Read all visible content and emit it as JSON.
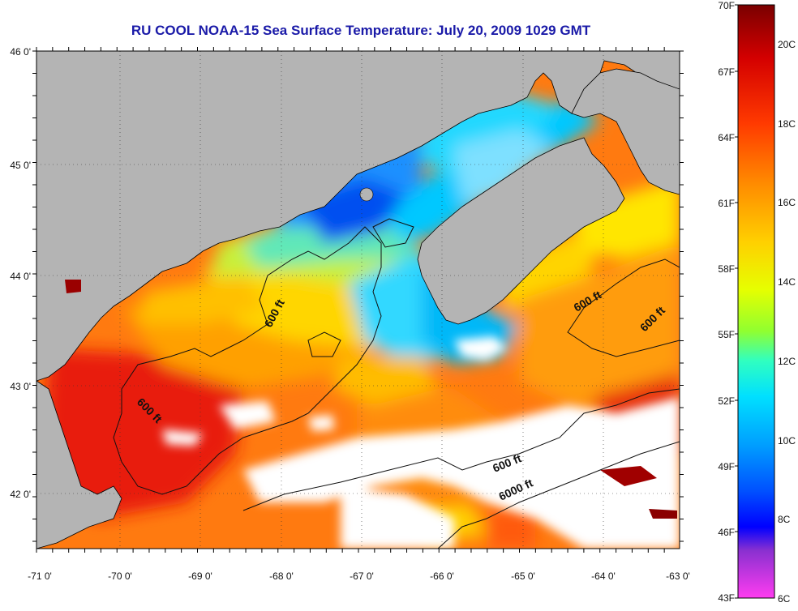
{
  "title": "RU COOL  NOAA-15  Sea Surface Temperature:  July 20, 2009 1029 GMT",
  "map": {
    "lon_ticks": [
      "-71 0'",
      "-70 0'",
      "-69 0'",
      "-68 0'",
      "-67 0'",
      "-66 0'",
      "-65 0'",
      "-64 0'",
      "-63 0'"
    ],
    "lat_ticks": [
      "46 0'",
      "45 0'",
      "44 0'",
      "43 0'",
      "42 0'"
    ],
    "contour_labels": [
      "600 ft",
      "600 ft",
      "600 ft",
      "600 ft",
      "600 ft",
      "6000 ft"
    ],
    "colors": {
      "land": "#b4b4b4",
      "cloud": "#ffffff",
      "grid": "#333333"
    }
  },
  "colorbar": {
    "fahrenheit": [
      "70F",
      "67F",
      "64F",
      "61F",
      "58F",
      "55F",
      "52F",
      "49F",
      "46F",
      "43F"
    ],
    "celsius": [
      "20C",
      "18C",
      "16C",
      "14C",
      "12C",
      "10C",
      "8C",
      "6C"
    ],
    "stops": [
      "#7a0000",
      "#d40000",
      "#ff3a00",
      "#ff8a00",
      "#ffd000",
      "#e6ff00",
      "#90ff30",
      "#30ffc0",
      "#00e0ff",
      "#00a0ff",
      "#0050ff",
      "#0000ff",
      "#8a30d0",
      "#ff3cf0"
    ]
  }
}
